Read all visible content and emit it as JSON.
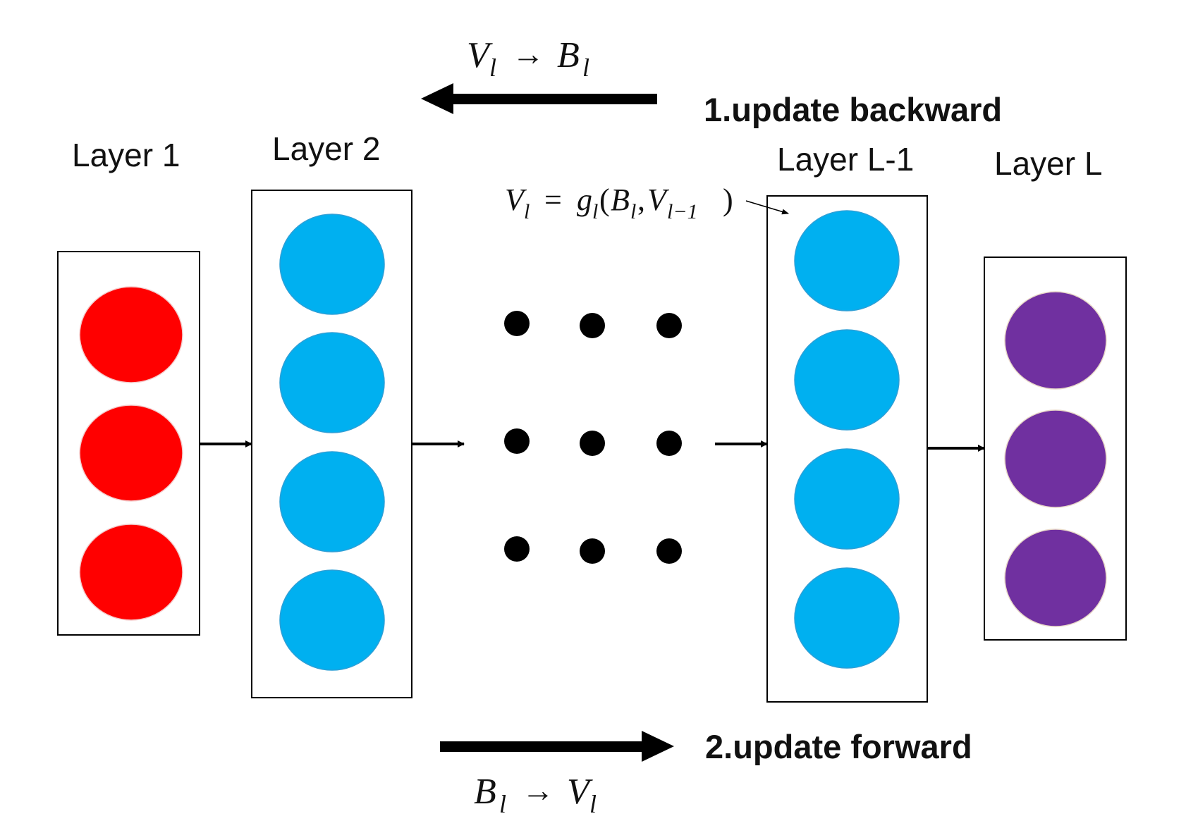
{
  "labels": {
    "layer1": "Layer 1",
    "layer2": "Layer 2",
    "layerLm1": "Layer L-1",
    "layerL": "Layer L"
  },
  "steps": {
    "backward": "1.update backward",
    "forward": "2.update forward"
  },
  "math": {
    "V": "V",
    "B": "B",
    "g": "g",
    "l": "l",
    "l_minus_1": "l−1",
    "to": "→",
    "eq": "=",
    "lparen": "(",
    "comma": ",",
    "rparen": ")"
  },
  "colors": {
    "input": "#ff0000",
    "hidden": "#00b0f0",
    "output": "#7030a0",
    "ink": "#000000"
  }
}
